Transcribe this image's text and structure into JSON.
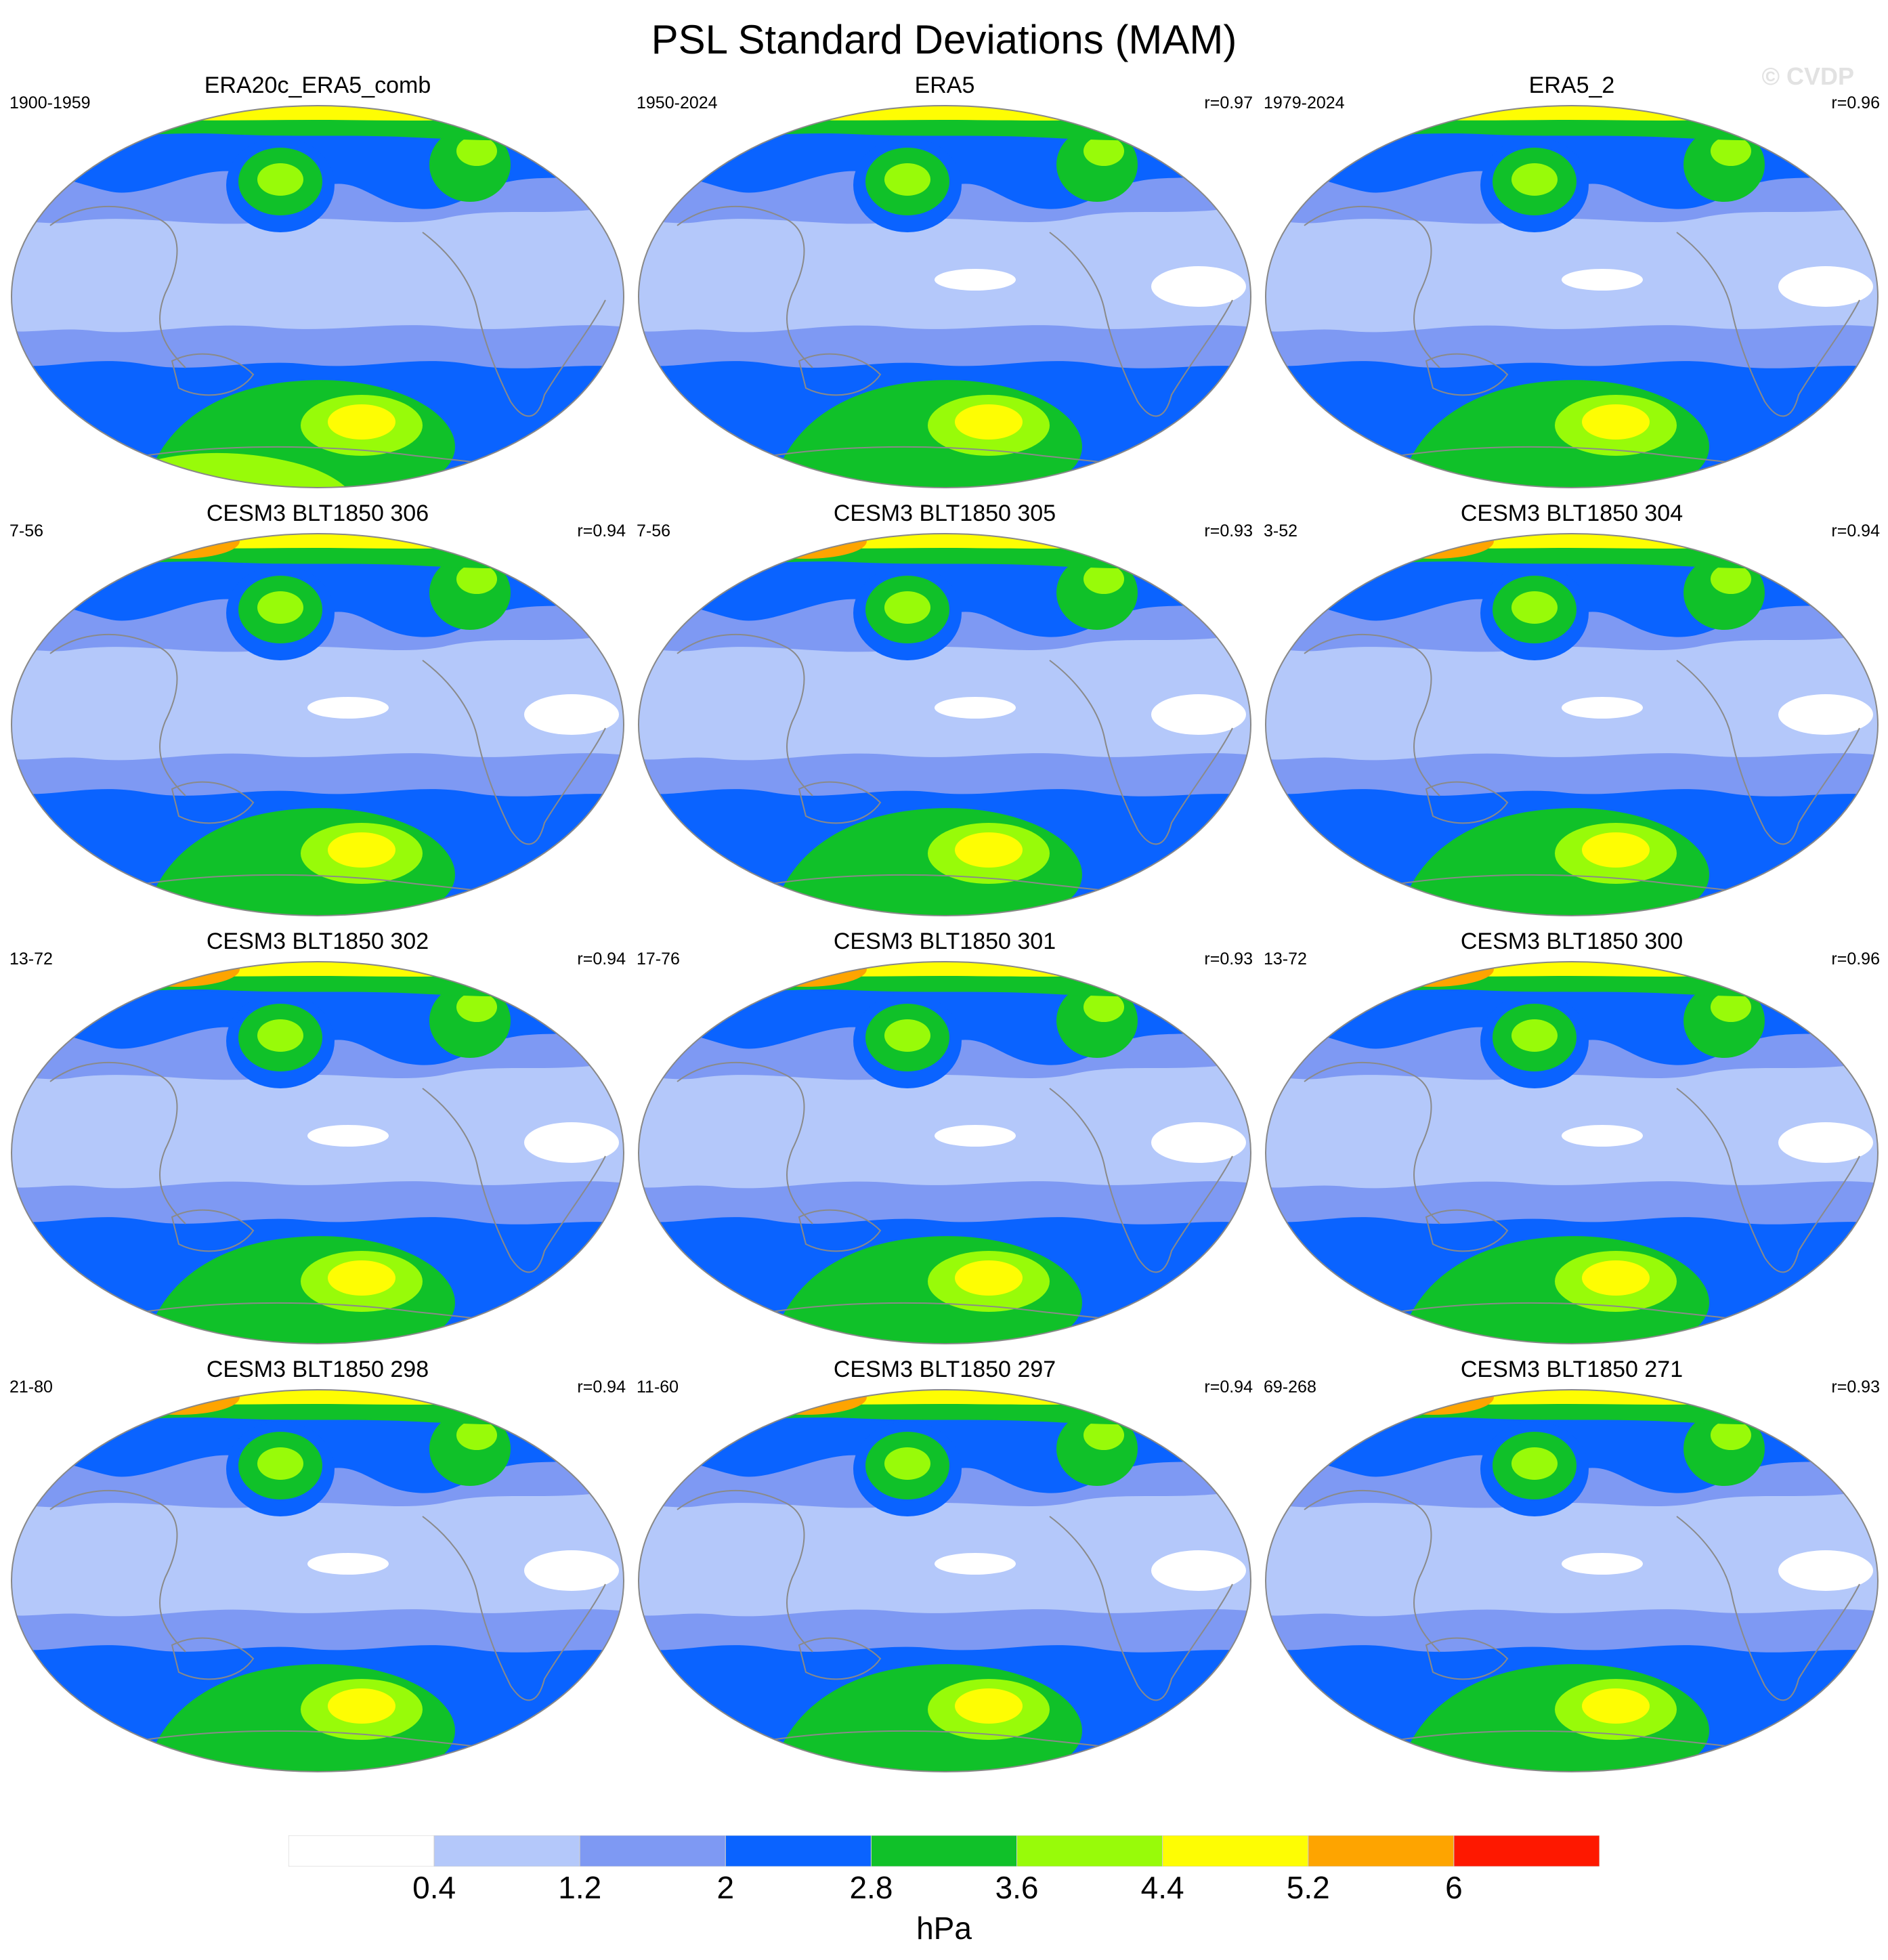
{
  "title": "PSL Standard Deviations (MAM)",
  "watermark": "© CVDP",
  "colors": {
    "white": "#ffffff",
    "lightblue": "#b4c8fa",
    "medblue": "#7e99f3",
    "blue": "#0a63ff",
    "green": "#10c129",
    "lime": "#98fb09",
    "yellow": "#fefd03",
    "orange": "#fea400",
    "red": "#fe1800",
    "coast": "#8a8a8a"
  },
  "panels": [
    {
      "title": "ERA20c_ERA5_comb",
      "period": "1900-1959",
      "r": ""
    },
    {
      "title": "ERA5",
      "period": "1950-2024",
      "r": "r=0.97"
    },
    {
      "title": "ERA5_2",
      "period": "1979-2024",
      "r": "r=0.96"
    },
    {
      "title": "CESM3 BLT1850 306",
      "period": "7-56",
      "r": "r=0.94"
    },
    {
      "title": "CESM3 BLT1850 305",
      "period": "7-56",
      "r": "r=0.93"
    },
    {
      "title": "CESM3 BLT1850 304",
      "period": "3-52",
      "r": "r=0.94"
    },
    {
      "title": "CESM3 BLT1850 302",
      "period": "13-72",
      "r": "r=0.94"
    },
    {
      "title": "CESM3 BLT1850 301",
      "period": "17-76",
      "r": "r=0.93"
    },
    {
      "title": "CESM3 BLT1850 300",
      "period": "13-72",
      "r": "r=0.96"
    },
    {
      "title": "CESM3 BLT1850 298",
      "period": "21-80",
      "r": "r=0.94"
    },
    {
      "title": "CESM3 BLT1850 297",
      "period": "11-60",
      "r": "r=0.94"
    },
    {
      "title": "CESM3 BLT1850 271",
      "period": "69-268",
      "r": "r=0.93"
    }
  ],
  "colorbar": {
    "unit": "hPa",
    "ticks": [
      "0.4",
      "1.2",
      "2",
      "2.8",
      "3.6",
      "4.4",
      "5.2",
      "6"
    ],
    "bins": [
      "#ffffff",
      "#b4c8fa",
      "#7e99f3",
      "#0a63ff",
      "#10c129",
      "#98fb09",
      "#fefd03",
      "#fea400",
      "#fe1800"
    ]
  }
}
